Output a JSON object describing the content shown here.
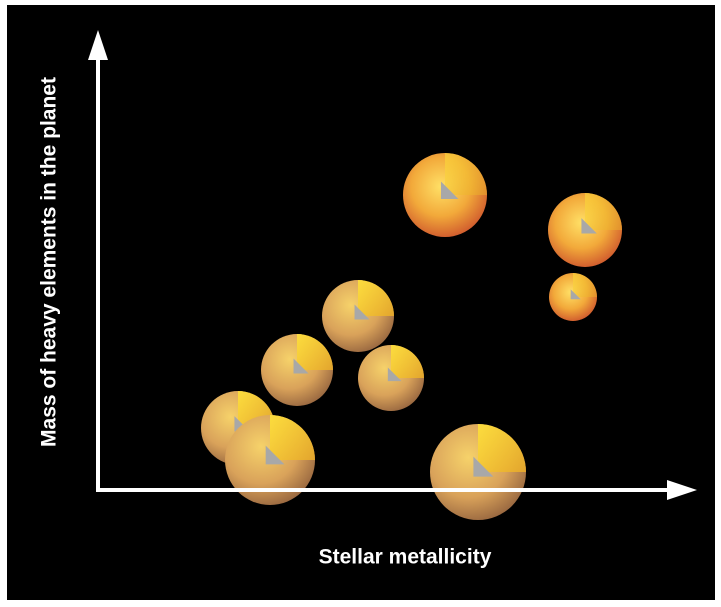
{
  "axes": {
    "y_label": "Mass of heavy elements in the planet",
    "x_label": "Stellar metallicity"
  }
}
